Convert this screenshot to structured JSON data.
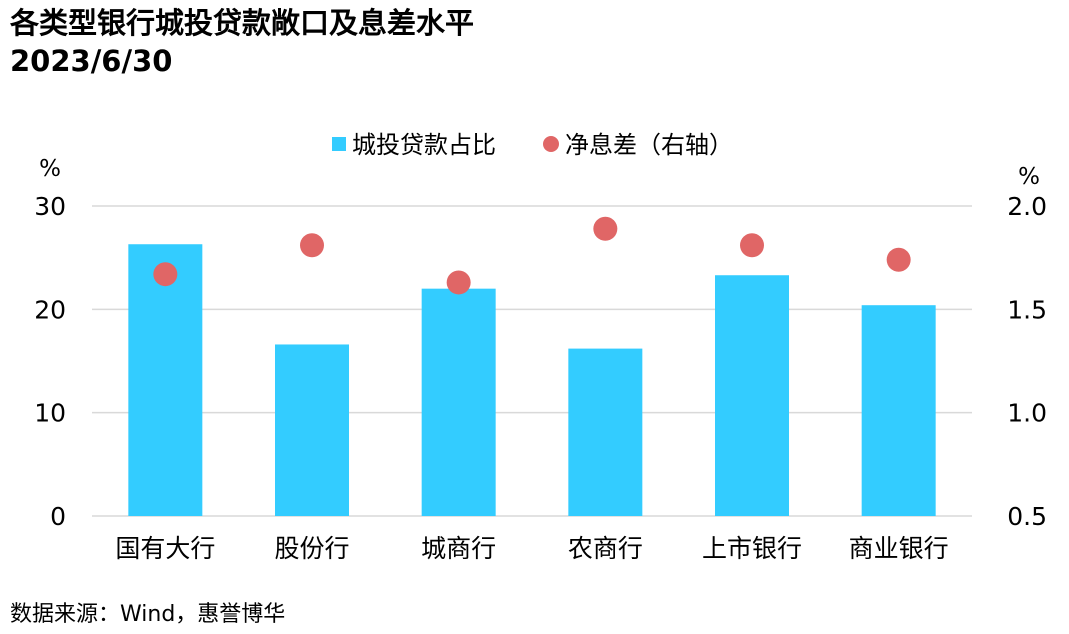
{
  "title": {
    "line1": "各类型银行城投贷款敞口及息差水平",
    "line2": "2023/6/30"
  },
  "source": "数据来源：Wind，惠誉博华",
  "colors": {
    "bar": "#33CCFF",
    "dot": "#E06666",
    "grid": "#D9D9D9"
  },
  "chart_data": {
    "type": "bar",
    "categories": [
      "国有大行",
      "股份行",
      "城商行",
      "农商行",
      "上市银行",
      "商业银行"
    ],
    "series": [
      {
        "name": "城投贷款占比",
        "type": "bar",
        "axis": "left",
        "values": [
          26.3,
          16.6,
          22.0,
          16.2,
          23.3,
          20.4
        ]
      },
      {
        "name": "净息差（右轴）",
        "type": "scatter",
        "axis": "right",
        "values": [
          1.67,
          1.81,
          1.63,
          1.89,
          1.81,
          1.74
        ]
      }
    ],
    "y_left": {
      "unit": "%",
      "ylim": [
        0,
        30
      ],
      "ticks": [
        "0",
        "10",
        "20",
        "30"
      ]
    },
    "y_right": {
      "unit": "%",
      "ylim": [
        0.5,
        2.0
      ],
      "ticks": [
        "0.5",
        "1.0",
        "1.5",
        "2.0"
      ]
    },
    "legend_position": "top-center",
    "grid": true
  }
}
